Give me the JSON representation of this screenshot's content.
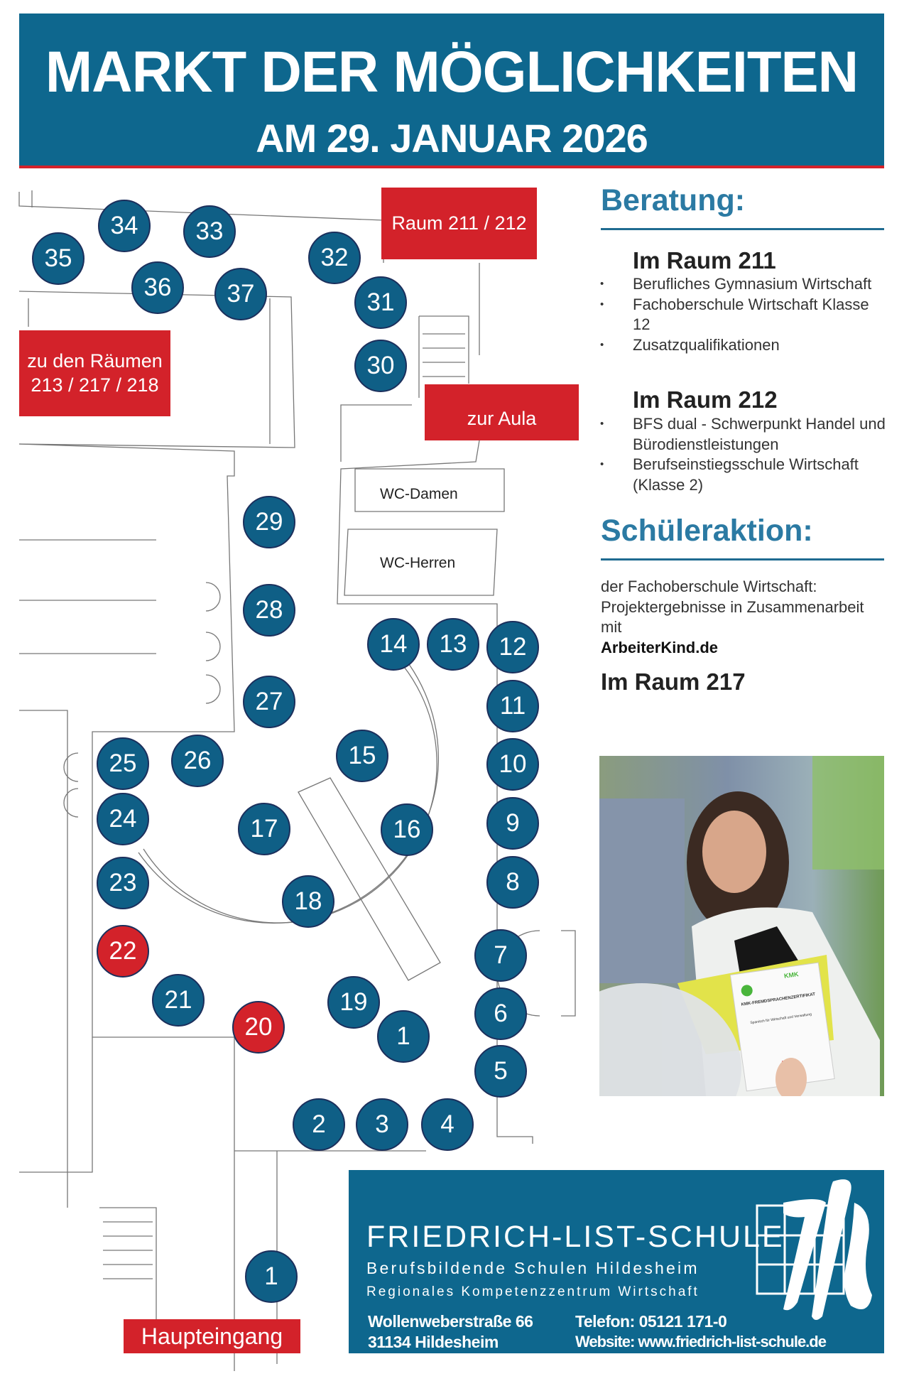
{
  "header": {
    "title": "MARKT DER MÖGLICHKEITEN",
    "subtitle": "AM 29. JANUAR 2026"
  },
  "floor_plan": {
    "labels": {
      "raum_211_212": "Raum 211 / 212",
      "zu_den_raeumen_line1": "zu den Räumen",
      "zu_den_raeumen_line2": "213 / 217 / 218",
      "zur_aula": "zur Aula",
      "haupteingang": "Haupteingang",
      "wc_damen": "WC-Damen",
      "wc_herren": "WC-Herren"
    },
    "stands": [
      {
        "number": "35",
        "color": "blue"
      },
      {
        "number": "34",
        "color": "blue"
      },
      {
        "number": "33",
        "color": "blue"
      },
      {
        "number": "36",
        "color": "blue"
      },
      {
        "number": "37",
        "color": "blue"
      },
      {
        "number": "32",
        "color": "blue"
      },
      {
        "number": "31",
        "color": "blue"
      },
      {
        "number": "30",
        "color": "blue"
      },
      {
        "number": "29",
        "color": "blue"
      },
      {
        "number": "28",
        "color": "blue"
      },
      {
        "number": "27",
        "color": "blue"
      },
      {
        "number": "14",
        "color": "blue"
      },
      {
        "number": "13",
        "color": "blue"
      },
      {
        "number": "12",
        "color": "blue"
      },
      {
        "number": "11",
        "color": "blue"
      },
      {
        "number": "10",
        "color": "blue"
      },
      {
        "number": "9",
        "color": "blue"
      },
      {
        "number": "8",
        "color": "blue"
      },
      {
        "number": "7",
        "color": "blue"
      },
      {
        "number": "6",
        "color": "blue"
      },
      {
        "number": "5",
        "color": "blue"
      },
      {
        "number": "4",
        "color": "blue"
      },
      {
        "number": "3",
        "color": "blue"
      },
      {
        "number": "2",
        "color": "blue"
      },
      {
        "number": "1",
        "color": "blue"
      },
      {
        "number": "19",
        "color": "blue"
      },
      {
        "number": "20",
        "color": "red"
      },
      {
        "number": "21",
        "color": "blue"
      },
      {
        "number": "22",
        "color": "red"
      },
      {
        "number": "23",
        "color": "blue"
      },
      {
        "number": "24",
        "color": "blue"
      },
      {
        "number": "25",
        "color": "blue"
      },
      {
        "number": "26",
        "color": "blue"
      },
      {
        "number": "15",
        "color": "blue"
      },
      {
        "number": "16",
        "color": "blue"
      },
      {
        "number": "17",
        "color": "blue"
      },
      {
        "number": "18",
        "color": "blue"
      },
      {
        "number": "1",
        "color": "blue"
      }
    ]
  },
  "beratung": {
    "heading": "Beratung:",
    "rooms": [
      {
        "title": "Im Raum 211",
        "items": [
          "Berufliches Gymnasium Wirtschaft",
          "Fachoberschule Wirtschaft Klasse 12",
          "Zusatzqualifikationen"
        ]
      },
      {
        "title": "Im Raum 212",
        "items": [
          "BFS dual - Schwerpunkt Handel und Bürodienstleistungen",
          "Berufseinstiegsschule Wirtschaft (Klasse 2)"
        ]
      }
    ]
  },
  "schueleraktion": {
    "heading": "Schüleraktion:",
    "text": "der Fachoberschule Wirtschaft: Projektergebnisse in Zusammenarbeit mit",
    "partner": "ArbeiterKind.de",
    "room": "Im Raum 217"
  },
  "photo": {
    "certificate_title": "KMK-FREMDSPRACHENZERTIFIKAT",
    "certificate_subject": "Spanisch für Wirtschaft und Verwaltung",
    "certificate_logo": "KMK"
  },
  "footer": {
    "school_name": "FRIEDRICH-LIST-SCHULE",
    "line2": "Berufsbildende Schulen Hildesheim",
    "line3": "Regionales Kompetenzzentrum Wirtschaft",
    "street": "Wollenweberstraße 66",
    "city": "31134 Hildesheim",
    "phone": "Telefon: 05121 171-0",
    "website": "Website: www.friedrich-list-schule.de",
    "logo_text": "fls"
  },
  "colors": {
    "brand_blue": "#0e678e",
    "stand_blue": "#0f5f86",
    "accent_red": "#d3222a",
    "heading_blue": "#2b7aa3"
  }
}
